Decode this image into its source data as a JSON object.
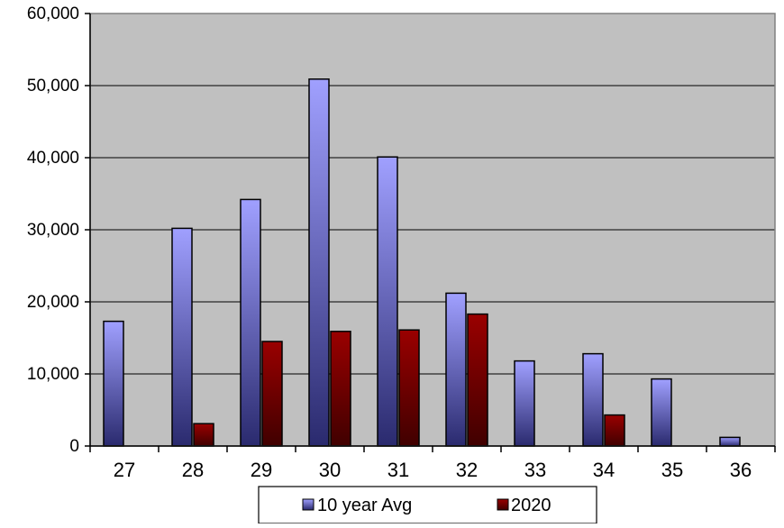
{
  "chart_data": {
    "type": "bar",
    "title": "",
    "xlabel": "",
    "ylabel": "",
    "categories": [
      "27",
      "28",
      "29",
      "30",
      "31",
      "32",
      "33",
      "34",
      "35",
      "36"
    ],
    "series": [
      {
        "name": "10 year Avg",
        "values": [
          17300,
          30200,
          34200,
          50900,
          40100,
          21200,
          11800,
          12800,
          9300,
          1200
        ]
      },
      {
        "name": "2020",
        "values": [
          0,
          3100,
          14500,
          15900,
          16100,
          18300,
          0,
          4300,
          0,
          0
        ]
      }
    ],
    "ylim": [
      0,
      60000
    ],
    "yticks": [
      "0",
      "10,000",
      "20,000",
      "30,000",
      "40,000",
      "50,000",
      "60,000"
    ],
    "grid": true,
    "legend_position": "bottom"
  },
  "colors": {
    "plot_background": "#c0c0c0",
    "series_1_top": "#a0a0ff",
    "series_1_bottom": "#2a2a6e",
    "series_2_top": "#9a0000",
    "series_2_bottom": "#400000",
    "gridline": "#000000"
  }
}
